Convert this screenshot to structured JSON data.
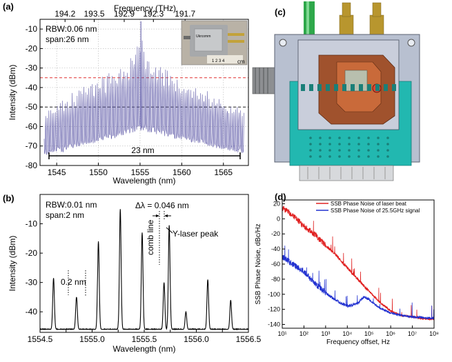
{
  "chart_data": [
    {
      "panel": "(a)",
      "type": "line",
      "xlabel": "Wavelength (nm)",
      "ylabel": "Intensity (dBm)",
      "x2label": "Frequency (THz)",
      "xlim": [
        1543,
        1568
      ],
      "ylim": [
        -80,
        -5
      ],
      "xticks": [
        1545,
        1550,
        1555,
        1560,
        1565
      ],
      "yticks": [
        -80,
        -70,
        -60,
        -50,
        -40,
        -30,
        -20,
        -10
      ],
      "x2ticks": [
        "194.2",
        "193.5",
        "192.9",
        "192.3",
        "191.7"
      ],
      "annotations": [
        "RBW:0.06 nm",
        "span:26 nm",
        "23 nm"
      ],
      "inset_label": "cm",
      "grid": true,
      "reference_lines": [
        {
          "y": -35,
          "color": "#e03030"
        },
        {
          "y": -50,
          "color": "#222222"
        }
      ],
      "series_color": "#5a55a5",
      "envelope": {
        "x": [
          1543.5,
          1546,
          1548,
          1550,
          1552,
          1553.5,
          1555,
          1556,
          1558,
          1560,
          1562,
          1564,
          1566,
          1567.5
        ],
        "peak": [
          -52,
          -45,
          -38,
          -34,
          -31,
          -28,
          -10,
          -26,
          -30,
          -35,
          -38,
          -42,
          -48,
          -50
        ],
        "floor": [
          -75,
          -73,
          -70,
          -68,
          -66,
          -64,
          -62,
          -63,
          -65,
          -67,
          -69,
          -71,
          -73,
          -74
        ]
      }
    },
    {
      "panel": "(b)",
      "type": "line",
      "xlabel": "Wavelength (nm)",
      "ylabel": "Intensity (dBm)",
      "xlim": [
        1554.5,
        1556.5
      ],
      "ylim": [
        -47,
        0
      ],
      "xticks": [
        1554.5,
        1554.75,
        1555.0,
        1555.25,
        1555.5,
        1555.75,
        1556.0,
        1556.25,
        1556.5
      ],
      "xticklabels": [
        "1554.5",
        "",
        "1555.0",
        "",
        "1555.5",
        "",
        "1556.0",
        "",
        "1556.5"
      ],
      "yticks": [
        -40,
        -30,
        -20,
        -10
      ],
      "annotations": [
        "RBW:0.01 nm",
        "span:2 nm",
        "0.2 nm",
        "Δλ = 0.046 nm",
        "comb line",
        "Y-laser peak"
      ],
      "series_color": "#000000",
      "floor": -46,
      "peaks": [
        {
          "x": 1554.63,
          "y": -28.5
        },
        {
          "x": 1554.85,
          "y": -35
        },
        {
          "x": 1555.06,
          "y": -16
        },
        {
          "x": 1555.27,
          "y": -5
        },
        {
          "x": 1555.48,
          "y": -13
        },
        {
          "x": 1555.69,
          "y": -30
        },
        {
          "x": 1555.74,
          "y": -10.5
        },
        {
          "x": 1555.9,
          "y": -40
        },
        {
          "x": 1556.11,
          "y": -29
        },
        {
          "x": 1556.33,
          "y": -36
        }
      ]
    },
    {
      "panel": "(d)",
      "type": "line",
      "xlabel": "Frequency offset, Hz",
      "ylabel": "SSB Phase Noise, dBc/Hz",
      "xscale": "log",
      "xlim": [
        10,
        100000000
      ],
      "ylim": [
        -145,
        25
      ],
      "xticklabels": [
        "10¹",
        "10²",
        "10³",
        "10⁴",
        "10⁵",
        "10⁶",
        "10⁷",
        "10⁸"
      ],
      "yticks": [
        -140,
        -120,
        -100,
        -80,
        -60,
        -40,
        -20,
        0,
        20
      ],
      "legend_position": "top-right",
      "series": [
        {
          "name": "SSB Phase Noise of laser beat",
          "color": "#e02020",
          "x": [
            10,
            30,
            100,
            300,
            1000,
            3000,
            10000,
            30000,
            100000,
            300000,
            1000000,
            3000000,
            10000000,
            30000000,
            100000000
          ],
          "y": [
            15,
            5,
            -10,
            -20,
            -35,
            -48,
            -65,
            -80,
            -96,
            -110,
            -122,
            -128,
            -130,
            -132,
            -133
          ]
        },
        {
          "name": "SSB Phase Noise of 25.5GHz signal",
          "color": "#2030d0",
          "x": [
            10,
            30,
            100,
            300,
            1000,
            3000,
            10000,
            30000,
            60000,
            100000,
            300000,
            1000000,
            3000000,
            10000000,
            30000000,
            100000000
          ],
          "y": [
            -50,
            -60,
            -70,
            -85,
            -98,
            -108,
            -116,
            -112,
            -103,
            -107,
            -118,
            -125,
            -128,
            -130,
            -131,
            -132
          ]
        }
      ]
    }
  ],
  "panels": {
    "a_label": "(a)",
    "b_label": "(b)",
    "c_label": "(c)",
    "d_label": "(d)"
  }
}
